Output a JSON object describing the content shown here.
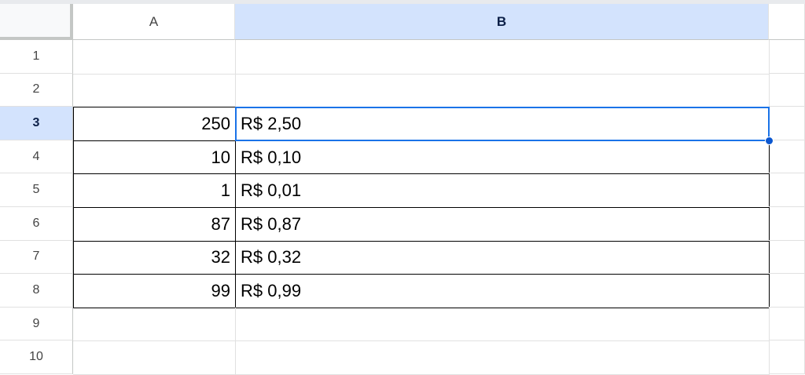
{
  "columns": [
    {
      "label": "A",
      "selected": false
    },
    {
      "label": "B",
      "selected": true
    },
    {
      "label": "",
      "selected": false
    }
  ],
  "rows": [
    {
      "num": "1",
      "a": "",
      "b": ""
    },
    {
      "num": "2",
      "a": "",
      "b": ""
    },
    {
      "num": "3",
      "a": "250",
      "b": "R$ 2,50"
    },
    {
      "num": "4",
      "a": "10",
      "b": "R$ 0,10"
    },
    {
      "num": "5",
      "a": "1",
      "b": "R$ 0,01"
    },
    {
      "num": "6",
      "a": "87",
      "b": "R$ 0,87"
    },
    {
      "num": "7",
      "a": "32",
      "b": "R$ 0,32"
    },
    {
      "num": "8",
      "a": "99",
      "b": "R$ 0,99"
    },
    {
      "num": "9",
      "a": "",
      "b": ""
    },
    {
      "num": "10",
      "a": "",
      "b": ""
    }
  ],
  "selected_cell": "B3",
  "colors": {
    "selection": "#1a73e8",
    "header_selected": "#d3e3fd"
  }
}
